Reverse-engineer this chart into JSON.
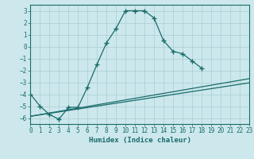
{
  "xlabel": "Humidex (Indice chaleur)",
  "background_color": "#cce8ec",
  "grid_color": "#aacdd4",
  "line_color": "#1a6b6b",
  "xlim": [
    0,
    23
  ],
  "ylim": [
    -6.5,
    3.5
  ],
  "yticks": [
    -6,
    -5,
    -4,
    -3,
    -2,
    -1,
    0,
    1,
    2,
    3
  ],
  "xticks": [
    0,
    1,
    2,
    3,
    4,
    5,
    6,
    7,
    8,
    9,
    10,
    11,
    12,
    13,
    14,
    15,
    16,
    17,
    18,
    19,
    20,
    21,
    22,
    23
  ],
  "series1_x": [
    0,
    1,
    2,
    3,
    4,
    5,
    6,
    7,
    8,
    9,
    10,
    11,
    12,
    13,
    14,
    15,
    16,
    17,
    18
  ],
  "series1_y": [
    -4.0,
    -5.0,
    -5.7,
    -6.1,
    -5.1,
    -5.1,
    -3.4,
    -1.5,
    0.3,
    1.5,
    3.0,
    3.0,
    3.0,
    2.4,
    0.5,
    -0.4,
    -0.6,
    -1.2,
    -1.8
  ],
  "line2_x": [
    0,
    23
  ],
  "line2_y": [
    -5.85,
    -2.7
  ],
  "line3_x": [
    0,
    23
  ],
  "line3_y": [
    -5.85,
    -3.05
  ]
}
